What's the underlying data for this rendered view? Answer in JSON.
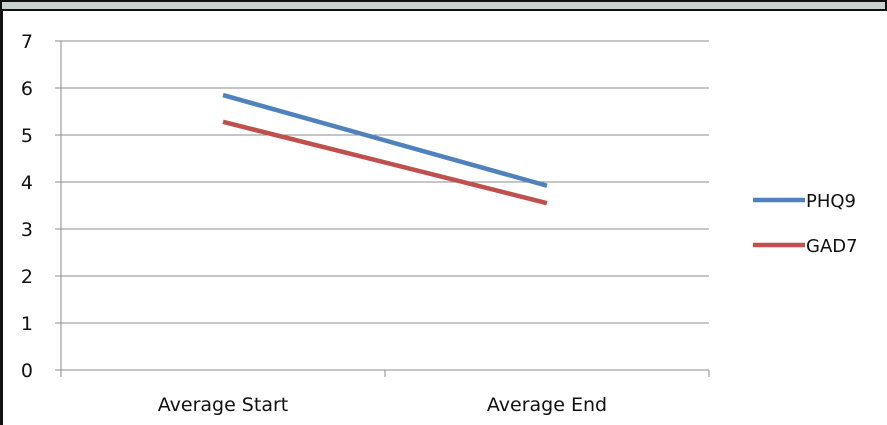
{
  "chart_data": {
    "type": "line",
    "categories": [
      "Average Start",
      "Average End"
    ],
    "series": [
      {
        "name": "PHQ9",
        "values": [
          5.85,
          3.92
        ],
        "color": "#4f81bd"
      },
      {
        "name": "GAD7",
        "values": [
          5.28,
          3.55
        ],
        "color": "#c0504d"
      }
    ],
    "ylim": [
      0,
      7
    ],
    "yticks": [
      0,
      1,
      2,
      3,
      4,
      5,
      6,
      7
    ],
    "ytick_labels": [
      "0",
      "1",
      "2",
      "3",
      "4",
      "5",
      "6",
      "7"
    ],
    "grid": true,
    "legend_placement": "right",
    "gridline_color": "#8c8c8c",
    "axis_color": "#8c8c8c"
  }
}
